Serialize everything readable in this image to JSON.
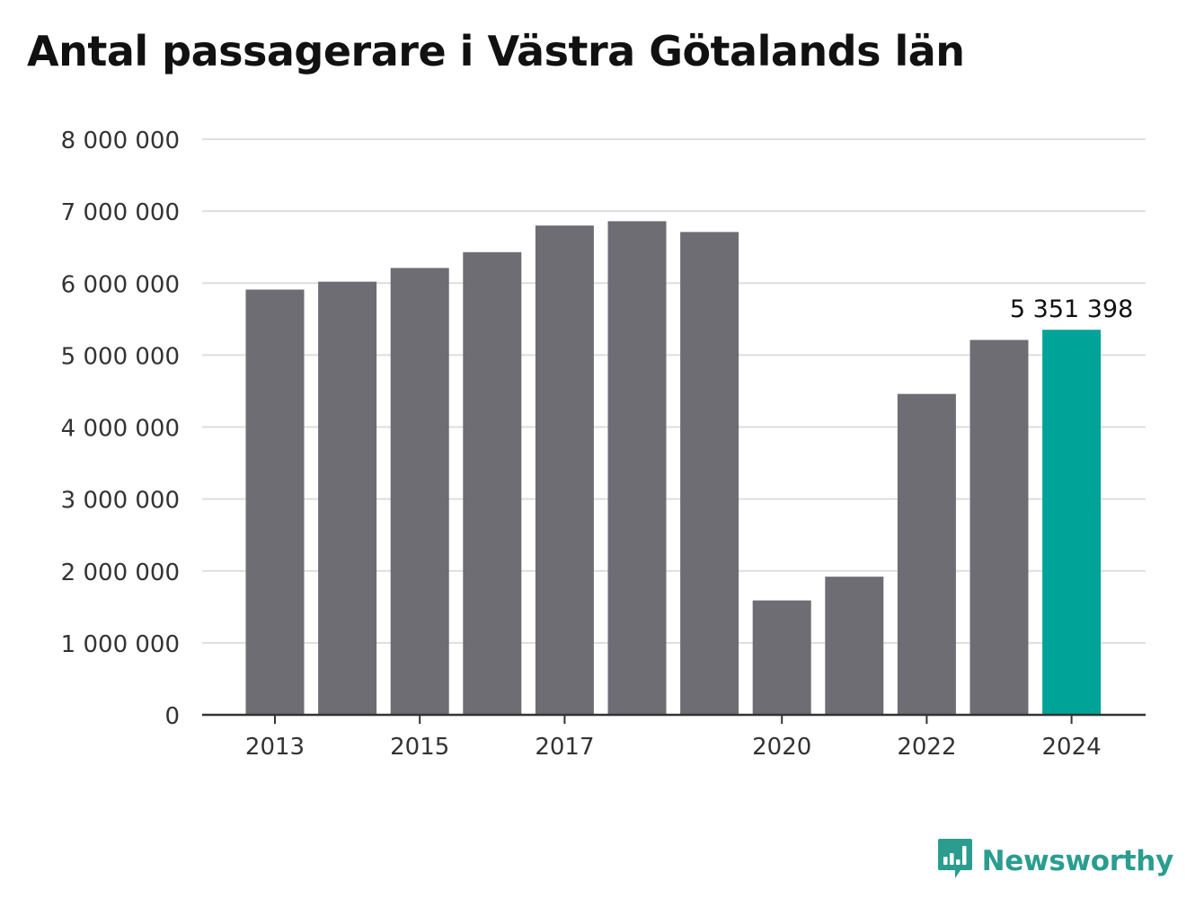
{
  "chart_data": {
    "type": "bar",
    "title": "Antal passagerare i Västra Götalands län",
    "categories": [
      "2013",
      "2014",
      "2015",
      "2016",
      "2017",
      "2018",
      "2019",
      "2020",
      "2021",
      "2022",
      "2023",
      "2024"
    ],
    "values": [
      5910000,
      6020000,
      6210000,
      6430000,
      6800000,
      6860000,
      6710000,
      1590000,
      1920000,
      4460000,
      5210000,
      5351398
    ],
    "highlight_index": 11,
    "highlight_label": "5 351 398",
    "ylim": [
      0,
      8000000
    ],
    "yticks": [
      0,
      1000000,
      2000000,
      3000000,
      4000000,
      5000000,
      6000000,
      7000000,
      8000000
    ],
    "ytick_labels": [
      "0",
      "1 000 000",
      "2 000 000",
      "3 000 000",
      "4 000 000",
      "5 000 000",
      "6 000 000",
      "7 000 000",
      "8 000 000"
    ],
    "xtick_labels": [
      "2013",
      "",
      "2015",
      "",
      "2017",
      "",
      "",
      "2020",
      "",
      "2022",
      "",
      "2024"
    ],
    "xlabel": "",
    "ylabel": "",
    "grid": true,
    "colors": {
      "bar": "#6e6d74",
      "highlight": "#00a398",
      "grid": "#dedede",
      "axis": "#333333"
    }
  },
  "brand": {
    "name": "Newsworthy",
    "icon": "newsworthy-logo-icon",
    "color": "#2a9d8f"
  }
}
